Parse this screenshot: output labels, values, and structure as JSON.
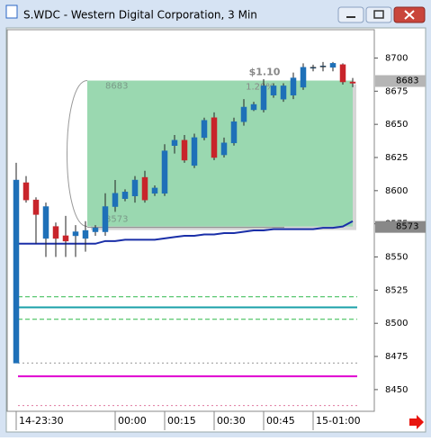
{
  "title": "S.WDC - Western Digital Corporation, 3 Min",
  "chart_data": {
    "type": "candlestick",
    "categories": [
      "14-23:30",
      null,
      null,
      null,
      null,
      null,
      null,
      null,
      null,
      null,
      "00:00",
      null,
      null,
      null,
      null,
      "00:15",
      null,
      null,
      null,
      null,
      "00:30",
      null,
      null,
      null,
      null,
      "00:45",
      null,
      null,
      null,
      null,
      "15-01:00",
      null,
      null,
      null,
      null
    ],
    "open": [
      8470,
      8606,
      8593,
      8564,
      8573,
      8566,
      8566,
      8564,
      8569,
      8569,
      8588,
      8594,
      8596,
      8610,
      8598,
      8598,
      8634,
      8638,
      8619,
      8640,
      8655,
      8627,
      8636,
      8652,
      8661,
      8661,
      8672,
      8669,
      8672,
      8678,
      8693,
      8694,
      8693,
      8695,
      8682
    ],
    "high": [
      8621,
      8611,
      8595,
      8591,
      8576,
      8581,
      8574,
      8577,
      8574,
      8598,
      8608,
      8601,
      8611,
      8615,
      8604,
      8635,
      8642,
      8642,
      8643,
      8655,
      8659,
      8640,
      8655,
      8669,
      8667,
      8684,
      8681,
      8681,
      8689,
      8696,
      8695,
      8697,
      8697,
      8696,
      8685
    ],
    "low": [
      8470,
      8591,
      8560,
      8550,
      8550,
      8550,
      8550,
      8554,
      8566,
      8566,
      8584,
      8592,
      8591,
      8591,
      8596,
      8596,
      8628,
      8621,
      8617,
      8638,
      8623,
      8625,
      8634,
      8649,
      8660,
      8659,
      8670,
      8667,
      8669,
      8676,
      8690,
      8690,
      8690,
      8680,
      8678
    ],
    "close": [
      8608,
      8593,
      8582,
      8588,
      8564,
      8562,
      8569,
      8570,
      8572,
      8588,
      8598,
      8599,
      8608,
      8593,
      8602,
      8630,
      8638,
      8623,
      8640,
      8653,
      8625,
      8636,
      8652,
      8663,
      8665,
      8679,
      8679,
      8679,
      8685,
      8693,
      8693,
      8694,
      8696,
      8682,
      8681
    ],
    "up_color": "#1e70b8",
    "down_color": "#c8242b",
    "average": {
      "color": "#1a2fa8",
      "values": [
        8560,
        8560,
        8560,
        8560,
        8560,
        8560,
        8560,
        8560,
        8560,
        8562,
        8562,
        8563,
        8563,
        8563,
        8563,
        8564,
        8565,
        8566,
        8566,
        8567,
        8567,
        8568,
        8568,
        8569,
        8570,
        8570,
        8571,
        8571,
        8571,
        8571,
        8571,
        8572,
        8572,
        8573,
        8577
      ]
    },
    "levels": [
      {
        "value": 8520,
        "color": "#2eb84a",
        "style": "dash"
      },
      {
        "value": 8512,
        "color": "#1aa0a8",
        "style": "solid"
      },
      {
        "value": 8503,
        "color": "#2eb84a",
        "style": "dash"
      },
      {
        "value": 8470,
        "color": "#9a9a9a",
        "style": "dot"
      },
      {
        "value": 8460,
        "color": "#e000d0",
        "style": "solid"
      },
      {
        "value": 8438,
        "color": "#e07aa0",
        "style": "dot"
      }
    ],
    "box": {
      "start": 8,
      "end": 34,
      "high": 8683,
      "low": 8573,
      "change": "$1.10",
      "percent": "1.28%",
      "color": "#9ad8b0"
    },
    "ylim": [
      8435,
      8720
    ],
    "yticks": [
      8450,
      8475,
      8500,
      8525,
      8550,
      8575,
      8600,
      8625,
      8650,
      8675,
      8700
    ]
  }
}
